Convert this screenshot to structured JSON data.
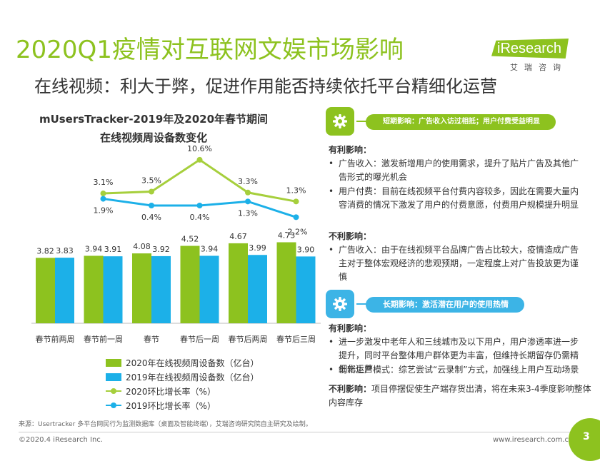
{
  "header": {
    "title": "2020Q1疫情对互联网文娱市场影响",
    "subtitle": "在线视频：利大于弊，促进作用能否持续依托平台精细化运营",
    "logo_text": "iResearch",
    "logo_sub": "艾瑞咨询"
  },
  "chart_data": {
    "type": "bar",
    "title": "mUsersTracker-2019年及2020年春节期间",
    "subtitle": "在线视频周设备数变化",
    "categories": [
      "春节前两周",
      "春节前一周",
      "春节",
      "春节后一周",
      "春节后两周",
      "春节后三周"
    ],
    "series": [
      {
        "name": "2020年在线视频周设备数（亿台）",
        "type": "bar",
        "color": "#8dc21f",
        "values": [
          3.82,
          3.94,
          4.08,
          4.52,
          4.67,
          4.73
        ]
      },
      {
        "name": "2019年在线视频周设备数（亿台）",
        "type": "bar",
        "color": "#1cb0e8",
        "values": [
          3.83,
          3.91,
          3.92,
          3.94,
          3.99,
          3.9
        ]
      },
      {
        "name": "2020环比增长率（%）",
        "type": "line",
        "color": "#a6cf3c",
        "values": [
          null,
          3.1,
          3.5,
          10.6,
          3.3,
          1.3
        ],
        "labels": [
          "",
          "3.1%",
          "3.5%",
          "10.6%",
          "3.3%",
          "1.3%"
        ]
      },
      {
        "name": "2019环比增长率（%）",
        "type": "line",
        "color": "#1cb0e8",
        "values": [
          null,
          1.9,
          0.4,
          0.4,
          1.3,
          -2.2
        ],
        "labels": [
          "",
          "1.9%",
          "0.4%",
          "0.4%",
          "1.3%",
          "-2.2%"
        ]
      }
    ],
    "grid": false,
    "legend": "bottom"
  },
  "panel": {
    "short_term": {
      "label": "短期影响：广告收入访过相抵；用户付费受益明显",
      "favorable_head": "有利影响：",
      "favorable": [
        "广告收入：激发新增用户的使用需求，提升了贴片广告及其他广告形式的曝光机会",
        "用户付费：目前在线视频平台付费内容较多，因此在需要大量内容消费的情况下激发了用户的付费意愿，付费用户规模提升明显"
      ],
      "unfavorable_head": "不利影响：",
      "unfavorable": [
        "广告收入：由于在线视频平台品牌广告占比较大，疫情造成广告主对于整体宏观经济的悲观预期，一定程度上对广告投放更为谨慎"
      ]
    },
    "long_term": {
      "label": "长期影响：激活潜在用户的使用热情",
      "favorable_head": "有利影响：",
      "favorable": [
        "进一步激发中老年人和三线城市及以下用户，用户渗透率进一步提升，同时平台整体用户群体更为丰富，但维持长期留存仍需精细化运营",
        "创新生产模式：综艺尝试“云录制”方式，加强线上用户互动场景"
      ],
      "unfavorable_head": "不利影响：",
      "unfavorable_text": "项目停摆促使生产端存货出清，将在未来3-4季度影响整体内容库存"
    }
  },
  "footer": {
    "source": "来源：Usertracker 多平台网民行为监测数据库（桌面及智能终端），艾瑞咨询研究院自主研究及绘制。",
    "copyright": "©2020.4 iResearch Inc.",
    "site": "www.iresearch.com.cn",
    "page": "3"
  }
}
